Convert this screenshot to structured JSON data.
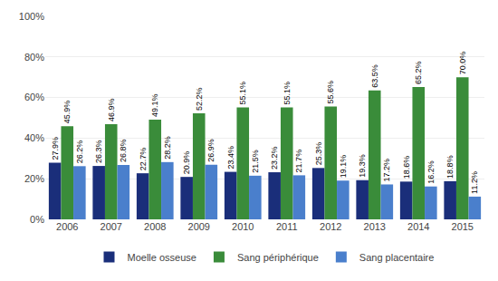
{
  "chart_data": {
    "type": "bar",
    "categories": [
      "2006",
      "2007",
      "2008",
      "2009",
      "2010",
      "2011",
      "2012",
      "2013",
      "2014",
      "2015"
    ],
    "series": [
      {
        "name": "Moelle osseuse",
        "color": "#1A2E7A",
        "values": [
          27.9,
          26.3,
          22.7,
          20.9,
          23.4,
          23.2,
          25.3,
          19.3,
          18.6,
          18.8
        ],
        "value_labels": [
          "27.9%",
          "26.3%",
          "22.7%",
          "20.9%",
          "23.4%",
          "23.2%",
          "25.3%",
          "19.3%",
          "18.6%",
          "18.8%"
        ]
      },
      {
        "name": "Sang périphérique",
        "color": "#3A8C3A",
        "values": [
          45.9,
          46.9,
          49.1,
          52.2,
          55.1,
          55.1,
          55.6,
          63.5,
          65.2,
          70.0
        ],
        "value_labels": [
          "45.9%",
          "46.9%",
          "49.1%",
          "52.2%",
          "55.1%",
          "55.1%",
          "55.6%",
          "63.5%",
          "65.2%",
          "70.0%"
        ]
      },
      {
        "name": "Sang placentaire",
        "color": "#4A7FCC",
        "values": [
          26.2,
          26.8,
          28.2,
          26.9,
          21.5,
          21.7,
          19.1,
          17.2,
          16.2,
          11.2
        ],
        "value_labels": [
          "26.2%",
          "26.8%",
          "28.2%",
          "26.9%",
          "21.5%",
          "21.7%",
          "19.1%",
          "17.2%",
          "16.2%",
          "11.2%"
        ]
      }
    ],
    "ylim": [
      0,
      100
    ],
    "yticks": [
      {
        "value": 0,
        "label": "0%"
      },
      {
        "value": 20,
        "label": "20%"
      },
      {
        "value": 40,
        "label": "40%"
      },
      {
        "value": 60,
        "label": "60%"
      },
      {
        "value": 80,
        "label": "80%"
      },
      {
        "value": 100,
        "label": "100%"
      }
    ],
    "grid": true,
    "data_labels": true,
    "legend": "bottom"
  }
}
